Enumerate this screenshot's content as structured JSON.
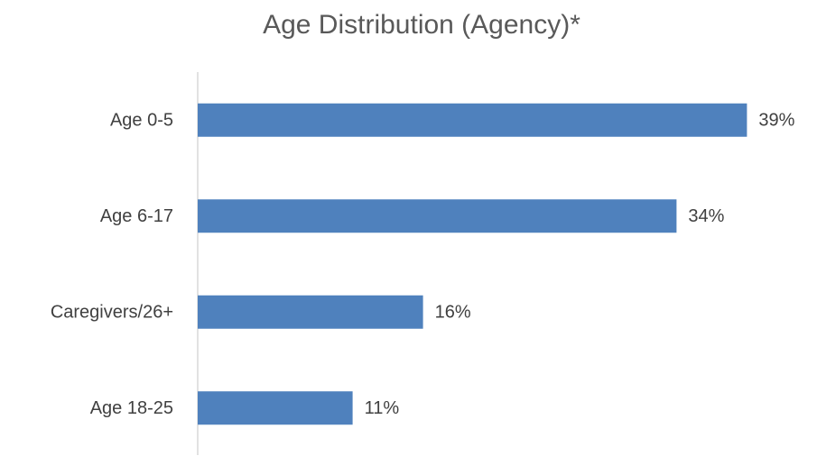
{
  "chart_data": {
    "type": "barh",
    "title": "Age Distribution (Agency)*",
    "categories": [
      "Age 0-5",
      "Age 6-17",
      "Caregivers/26+",
      "Age 18-25"
    ],
    "values": [
      39,
      34,
      16,
      11
    ],
    "value_labels": [
      "39%",
      "34%",
      "16%",
      "11%"
    ],
    "color": "#4f81bd",
    "xlim": [
      0,
      40
    ]
  }
}
